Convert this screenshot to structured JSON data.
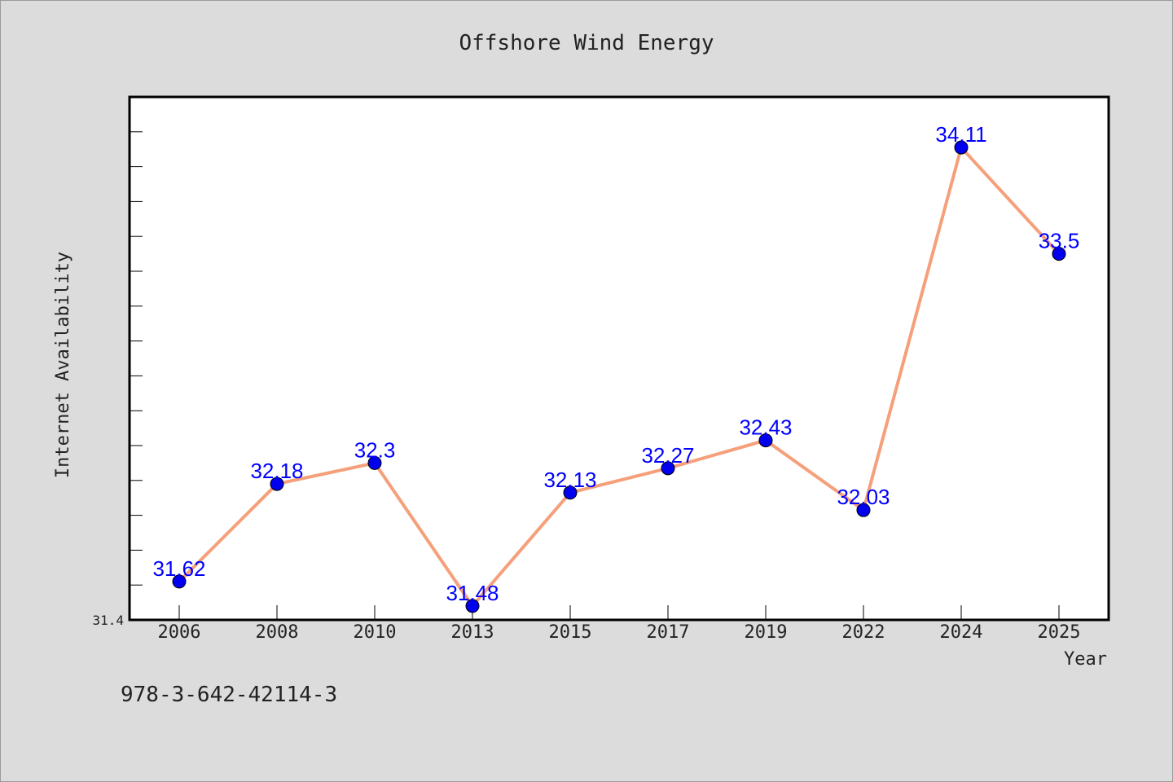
{
  "chart_data": {
    "type": "line",
    "title": "Offshore Wind Energy",
    "xlabel": "Year",
    "ylabel": "Internet Availability",
    "categories": [
      "2006",
      "2008",
      "2010",
      "2013",
      "2015",
      "2017",
      "2019",
      "2022",
      "2024",
      "2025"
    ],
    "series": [
      {
        "values": [
          31.62,
          32.18,
          32.3,
          31.48,
          32.13,
          32.27,
          32.43,
          32.03,
          34.11,
          33.5
        ]
      }
    ],
    "data_labels": [
      "31.62",
      "32.18",
      "32.3",
      "31.48",
      "32.13",
      "32.27",
      "32.43",
      "32.03",
      "34.11",
      "33.5"
    ],
    "ylim": [
      31.4,
      34.4
    ],
    "ytick_labels": [
      "31.4"
    ],
    "ytick_minor_step": 0.2,
    "grid": false,
    "legend": "none",
    "colors": {
      "line": "#f5a07a",
      "marker": "#0000ee",
      "label": "#0000ff",
      "background": "#dcdcdc",
      "plot_background": "#ffffff"
    }
  },
  "footer": {
    "code": "978-3-642-42114-3"
  }
}
